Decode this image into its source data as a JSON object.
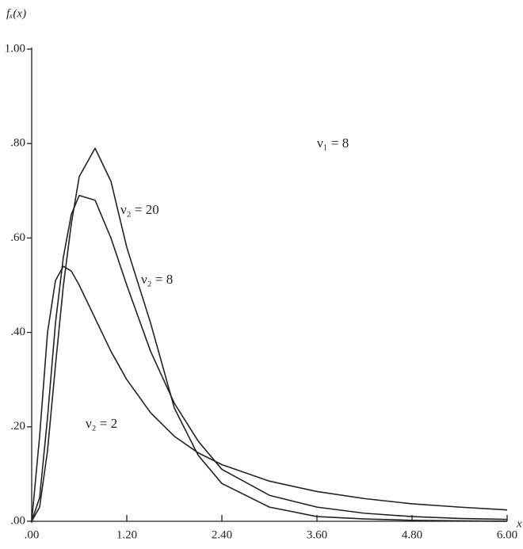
{
  "chart_data": {
    "type": "line",
    "y_label": "fₓ(x)",
    "x_label": "x",
    "annotation": "ν₁ = 8",
    "x": [
      0,
      0.1,
      0.2,
      0.3,
      0.4,
      0.5,
      0.6,
      0.8,
      1.0,
      1.2,
      1.5,
      1.8,
      2.1,
      2.4,
      3.0,
      3.6,
      4.2,
      4.8,
      5.4,
      6.0
    ],
    "series": [
      {
        "name": "ν₂ = 20",
        "color": "#222222",
        "values": [
          0,
          0.03,
          0.15,
          0.33,
          0.5,
          0.63,
          0.73,
          0.79,
          0.72,
          0.58,
          0.42,
          0.24,
          0.14,
          0.08,
          0.03,
          0.01,
          0.005,
          0.002,
          0.001,
          0
        ]
      },
      {
        "name": "ν₂ = 8",
        "color": "#222222",
        "values": [
          0,
          0.05,
          0.22,
          0.42,
          0.56,
          0.65,
          0.69,
          0.68,
          0.6,
          0.5,
          0.36,
          0.25,
          0.17,
          0.11,
          0.055,
          0.03,
          0.017,
          0.01,
          0.006,
          0.004
        ]
      },
      {
        "name": "ν₂ = 2",
        "color": "#222222",
        "values": [
          0,
          0.18,
          0.4,
          0.51,
          0.54,
          0.53,
          0.5,
          0.43,
          0.36,
          0.3,
          0.23,
          0.18,
          0.145,
          0.12,
          0.085,
          0.063,
          0.048,
          0.037,
          0.03,
          0.024
        ]
      }
    ],
    "xlim": [
      0,
      6
    ],
    "ylim": [
      0,
      1
    ],
    "xticks": [
      {
        "value": 0,
        "label": ".00"
      },
      {
        "value": 1.2,
        "label": "1.20"
      },
      {
        "value": 2.4,
        "label": "2.40"
      },
      {
        "value": 3.6,
        "label": "3.60"
      },
      {
        "value": 4.8,
        "label": "4.80"
      },
      {
        "value": 6,
        "label": "6.00"
      }
    ],
    "yticks": [
      {
        "value": 0,
        "label": ".00"
      },
      {
        "value": 0.2,
        "label": ".20"
      },
      {
        "value": 0.4,
        "label": ".40"
      },
      {
        "value": 0.6,
        "label": ".60"
      },
      {
        "value": 0.8,
        "label": ".80"
      },
      {
        "value": 1,
        "label": "1.00"
      }
    ],
    "grid": false
  }
}
